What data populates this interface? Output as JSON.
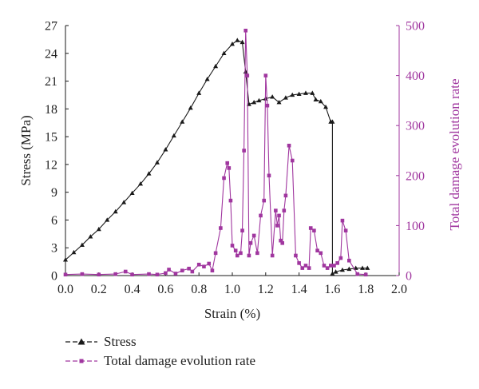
{
  "chart_data": {
    "type": "line",
    "xlabel": "Strain (%)",
    "ylabel": "Stress (MPa)",
    "y2label": "Total damage evolution rate",
    "xlim": [
      0,
      2.0
    ],
    "ylim": [
      0,
      27
    ],
    "y2lim": [
      0,
      500
    ],
    "x_ticks": [
      "0.0",
      "0.2",
      "0.4",
      "0.6",
      "0.8",
      "1.0",
      "1.2",
      "1.4",
      "1.6",
      "1.8",
      "2.0"
    ],
    "y_ticks": [
      "0",
      "3",
      "6",
      "9",
      "12",
      "15",
      "18",
      "21",
      "24",
      "27"
    ],
    "y2_ticks": [
      "0",
      "100",
      "200",
      "300",
      "400",
      "500"
    ],
    "grid": false,
    "legend_position": "bottom-left",
    "colors": {
      "stress": "#1a1a1a",
      "damage": "#a0369f"
    },
    "series": [
      {
        "name": "Stress",
        "axis": "left",
        "marker": "triangle",
        "x": [
          0.0,
          0.05,
          0.1,
          0.15,
          0.2,
          0.25,
          0.3,
          0.35,
          0.4,
          0.45,
          0.5,
          0.55,
          0.6,
          0.65,
          0.7,
          0.75,
          0.8,
          0.85,
          0.9,
          0.95,
          1.0,
          1.03,
          1.06,
          1.08,
          1.1,
          1.13,
          1.16,
          1.2,
          1.24,
          1.28,
          1.32,
          1.36,
          1.4,
          1.44,
          1.48,
          1.5,
          1.53,
          1.56,
          1.59,
          1.6,
          1.6,
          1.62,
          1.66,
          1.7,
          1.74,
          1.78,
          1.81
        ],
        "y": [
          1.7,
          2.5,
          3.3,
          4.2,
          5.0,
          6.0,
          6.9,
          7.9,
          8.9,
          9.9,
          11.0,
          12.2,
          13.6,
          15.1,
          16.6,
          18.1,
          19.7,
          21.2,
          22.6,
          24.0,
          25.0,
          25.4,
          25.2,
          22.0,
          18.5,
          18.7,
          18.9,
          19.1,
          19.3,
          18.7,
          19.2,
          19.5,
          19.6,
          19.7,
          19.7,
          19.0,
          18.8,
          18.2,
          16.6,
          16.6,
          0.2,
          0.4,
          0.6,
          0.7,
          0.8,
          0.8,
          0.8
        ]
      },
      {
        "name": "Total damage evolution rate",
        "axis": "right",
        "marker": "square",
        "x": [
          0.0,
          0.1,
          0.2,
          0.3,
          0.36,
          0.4,
          0.5,
          0.55,
          0.6,
          0.62,
          0.66,
          0.7,
          0.74,
          0.76,
          0.8,
          0.83,
          0.86,
          0.88,
          0.9,
          0.93,
          0.95,
          0.97,
          0.98,
          0.99,
          1.0,
          1.02,
          1.03,
          1.05,
          1.06,
          1.07,
          1.08,
          1.09,
          1.1,
          1.11,
          1.13,
          1.15,
          1.17,
          1.19,
          1.2,
          1.21,
          1.22,
          1.24,
          1.26,
          1.27,
          1.28,
          1.29,
          1.3,
          1.31,
          1.32,
          1.34,
          1.36,
          1.38,
          1.4,
          1.42,
          1.44,
          1.46,
          1.47,
          1.49,
          1.51,
          1.53,
          1.55,
          1.57,
          1.59,
          1.61,
          1.63,
          1.65,
          1.66,
          1.68,
          1.7,
          1.75,
          1.8
        ],
        "y": [
          2,
          3,
          2,
          3,
          8,
          2,
          3,
          2,
          5,
          12,
          4,
          10,
          14,
          8,
          22,
          18,
          24,
          10,
          45,
          95,
          195,
          225,
          215,
          150,
          60,
          50,
          40,
          45,
          90,
          250,
          490,
          400,
          40,
          65,
          80,
          45,
          120,
          150,
          400,
          340,
          200,
          40,
          130,
          100,
          120,
          70,
          65,
          130,
          160,
          260,
          230,
          40,
          25,
          15,
          20,
          15,
          95,
          90,
          50,
          45,
          20,
          15,
          20,
          20,
          25,
          35,
          110,
          90,
          30,
          3,
          2
        ]
      }
    ]
  }
}
